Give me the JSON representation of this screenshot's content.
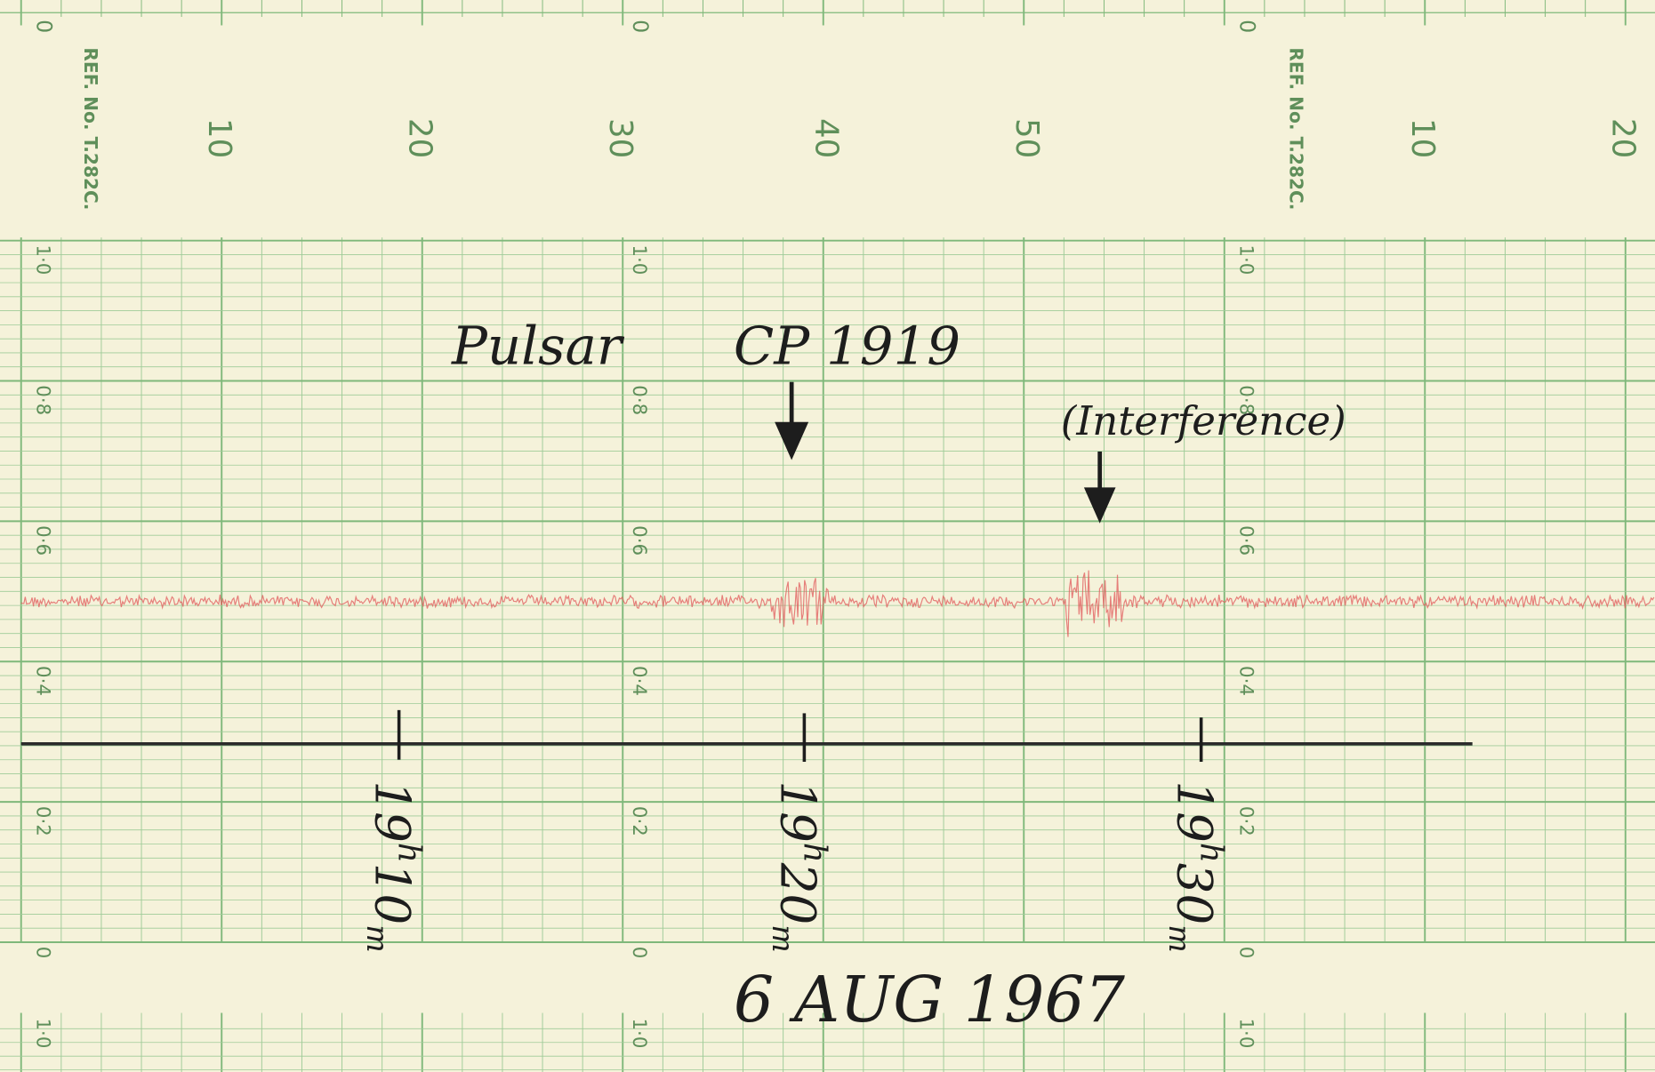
{
  "header_strip": {
    "zero": "0",
    "ref_no": "REF. No. T.282C.",
    "minute_labels": [
      "10",
      "20",
      "30",
      "40",
      "50",
      "10",
      "20"
    ]
  },
  "scale": {
    "labels": [
      "1·0",
      "0·8",
      "0·6",
      "0·4",
      "0·2",
      "0"
    ],
    "bottom_label": "1·0"
  },
  "annotations": {
    "pulsar": "Pulsar",
    "source": "CP 1919",
    "interference": "(Interference)"
  },
  "time_marks": [
    {
      "hours": "19",
      "h": "h",
      "minutes": "10",
      "m": "m"
    },
    {
      "hours": "19",
      "h": "h",
      "minutes": "20",
      "m": "m"
    },
    {
      "hours": "19",
      "h": "h",
      "minutes": "30",
      "m": "m"
    }
  ],
  "date": "6 AUG 1967"
}
